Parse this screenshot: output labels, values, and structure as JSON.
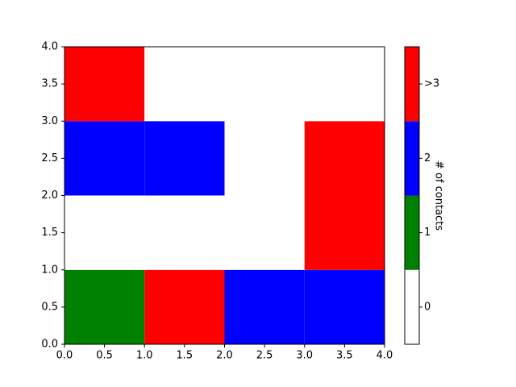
{
  "chart_data": {
    "type": "heatmap",
    "x": [
      0,
      1,
      2,
      3,
      4
    ],
    "y": [
      0,
      1,
      2,
      3,
      4
    ],
    "z": [
      [
        1,
        3,
        2,
        2
      ],
      [
        0,
        0,
        0,
        3
      ],
      [
        2,
        2,
        0,
        3
      ],
      [
        3,
        0,
        0,
        0
      ]
    ],
    "xlim": [
      0,
      4
    ],
    "ylim": [
      0,
      4
    ],
    "xticks": [
      {
        "value": 0,
        "label": "0.0"
      },
      0.5,
      {
        "value": 1,
        "label": "1.0"
      },
      1.5,
      {
        "value": 2,
        "label": "2.0"
      },
      2.5,
      {
        "value": 3,
        "label": "3.0"
      },
      3.5,
      {
        "value": 4,
        "label": "4.0"
      }
    ],
    "yticks": [
      {
        "value": 0,
        "label": "0.0"
      },
      0.5,
      {
        "value": 1,
        "label": "1.0"
      },
      1.5,
      {
        "value": 2,
        "label": "2.0"
      },
      2.5,
      {
        "value": 3,
        "label": "3.0"
      },
      3.5,
      {
        "value": 4,
        "label": "4.0"
      }
    ],
    "colorbar": {
      "label": "# of contacts",
      "colors": [
        "#ffffff",
        "#008000",
        "#0000ff",
        "#ff0000"
      ],
      "clim": [
        -0.5,
        3.5
      ],
      "ticks": [
        0,
        1,
        2,
        {
          "value": 3,
          "label": ">3"
        }
      ]
    }
  }
}
